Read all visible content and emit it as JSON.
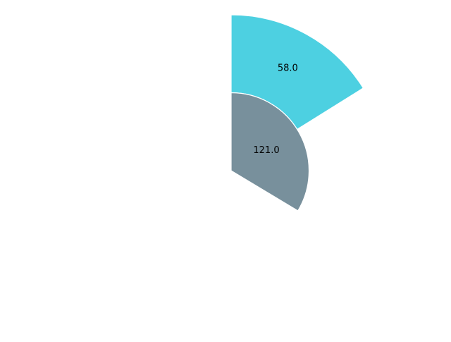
{
  "chart_data": {
    "type": "pie",
    "title": "",
    "start_angle_deg": 90,
    "direction": "clockwise",
    "full_circle_value": 360,
    "rings": [
      {
        "name": "",
        "values": [
          58.0
        ],
        "labels": [
          "58.0"
        ],
        "colors": [
          "#4dd0e1"
        ],
        "radius": 1.0,
        "inner_radius": 0.5
      },
      {
        "name": "",
        "values": [
          121.0
        ],
        "labels": [
          "121.0"
        ],
        "colors": [
          "#78909c"
        ],
        "radius": 0.5,
        "inner_radius": 0.0
      }
    ]
  }
}
